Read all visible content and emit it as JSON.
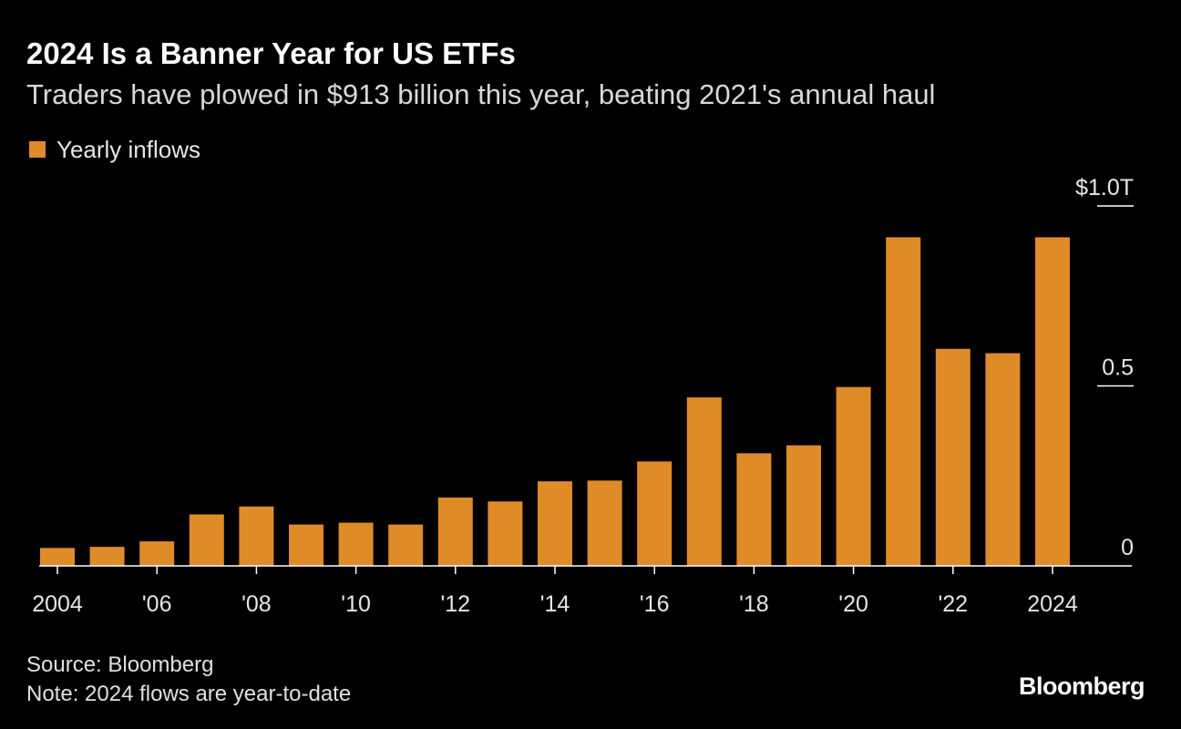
{
  "title": "2024 Is a Banner Year for US ETFs",
  "subtitle": "Traders have plowed in $913 billion this year, beating 2021's annual haul",
  "source": "Source: Bloomberg",
  "note": "Note: 2024 flows are year-to-date",
  "logo": "Bloomberg",
  "colors": {
    "bar": "#DE8B28",
    "background": "#000000",
    "text": "#FFFFFF",
    "axis": "#FFFFFF"
  },
  "chart_data": {
    "type": "bar",
    "title": "2024 Is a Banner Year for US ETFs",
    "subtitle": "Traders have plowed in $913 billion this year, beating 2021's annual haul",
    "xlabel": "",
    "ylabel": "",
    "unit": "$T",
    "categories": [
      "2004",
      "2005",
      "2006",
      "2007",
      "2008",
      "2009",
      "2010",
      "2011",
      "2012",
      "2013",
      "2014",
      "2015",
      "2016",
      "2017",
      "2018",
      "2019",
      "2020",
      "2021",
      "2022",
      "2023",
      "2024"
    ],
    "series": [
      {
        "name": "Yearly inflows",
        "values": [
          0.05,
          0.053,
          0.068,
          0.143,
          0.165,
          0.115,
          0.12,
          0.115,
          0.19,
          0.179,
          0.235,
          0.237,
          0.29,
          0.468,
          0.313,
          0.335,
          0.497,
          0.913,
          0.603,
          0.591,
          0.913
        ]
      }
    ],
    "x_tick_labels": [
      "2004",
      "'06",
      "'08",
      "'10",
      "'12",
      "'14",
      "'16",
      "'18",
      "'20",
      "'22",
      "2024"
    ],
    "x_tick_years": [
      2004,
      2006,
      2008,
      2010,
      2012,
      2014,
      2016,
      2018,
      2020,
      2022,
      2024
    ],
    "y_ticks": [
      0,
      0.5,
      1.0
    ],
    "y_tick_labels": [
      "0",
      "0.5",
      "$1.0T"
    ],
    "ylim": [
      0,
      1.0
    ],
    "y_axis_side": "right",
    "grid": false,
    "legend": "top-left"
  }
}
